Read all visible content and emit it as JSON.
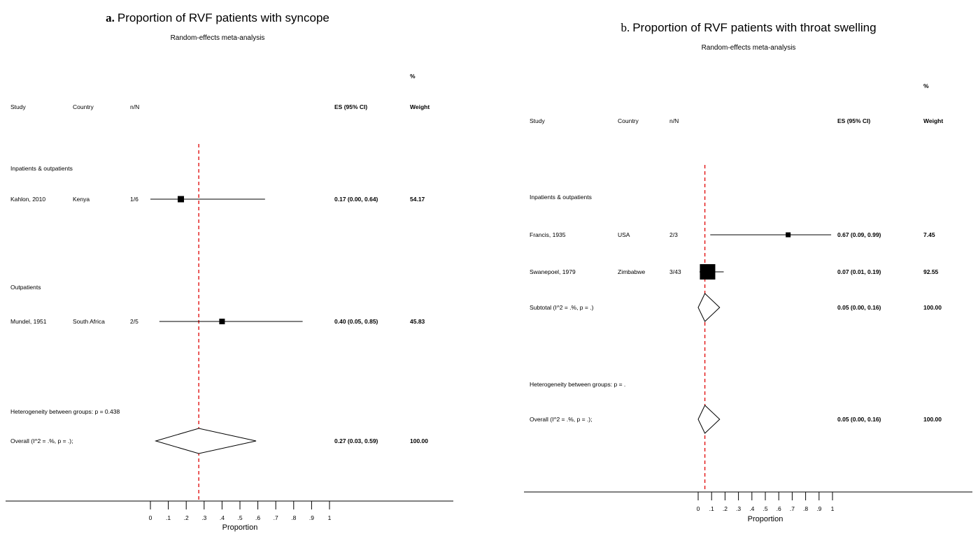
{
  "chart_data": [
    {
      "type": "forest",
      "panel_letter": "a.",
      "title": "Proportion of RVF patients with syncope",
      "subtitle": "Random-effects meta-analysis",
      "xlabel": "Proportion",
      "xlim": [
        0,
        1
      ],
      "xticks": [
        "0",
        ".1",
        ".2",
        ".3",
        ".4",
        ".5",
        ".6",
        ".7",
        ".8",
        ".9",
        "1"
      ],
      "reference_line": 0.27,
      "headers": {
        "study": "Study",
        "country": "Country",
        "nN": "n/N",
        "es": "ES (95% CI)",
        "pct": "%",
        "weight": "Weight"
      },
      "rows": [
        {
          "kind": "group",
          "label": "Inpatients & outpatients"
        },
        {
          "kind": "study",
          "study": "Kahlon, 2010",
          "country": "Kenya",
          "nN": "1/6",
          "es": 0.17,
          "lo": 0.0,
          "hi": 0.64,
          "es_text": "0.17 (0.00, 0.64)",
          "weight": "54.17"
        },
        {
          "kind": "group",
          "label": "Outpatients"
        },
        {
          "kind": "study",
          "study": "Mundel, 1951",
          "country": "South Africa",
          "nN": "2/5",
          "es": 0.4,
          "lo": 0.05,
          "hi": 0.85,
          "es_text": "0.40 (0.05, 0.85)",
          "weight": "45.83"
        },
        {
          "kind": "note",
          "label": "Heterogeneity between groups: p = 0.438"
        },
        {
          "kind": "overall",
          "label": "Overall  (I^2 = .%, p = .);",
          "es": 0.27,
          "lo": 0.03,
          "hi": 0.59,
          "es_text": "0.27 (0.03, 0.59)",
          "weight": "100.00"
        }
      ]
    },
    {
      "type": "forest",
      "panel_letter": "b.",
      "title": "Proportion of RVF patients with throat swelling",
      "subtitle": "Random-effects meta-analysis",
      "xlabel": "Proportion",
      "xlim": [
        0,
        1
      ],
      "xticks": [
        "0",
        ".1",
        ".2",
        ".3",
        ".4",
        ".5",
        ".6",
        ".7",
        ".8",
        ".9",
        "1"
      ],
      "reference_line": 0.05,
      "headers": {
        "study": "Study",
        "country": "Country",
        "nN": "n/N",
        "es": "ES (95% CI)",
        "pct": "%",
        "weight": "Weight"
      },
      "rows": [
        {
          "kind": "group",
          "label": "Inpatients & outpatients"
        },
        {
          "kind": "study",
          "study": "Francis, 1935",
          "country": "USA",
          "nN": "2/3",
          "es": 0.67,
          "lo": 0.09,
          "hi": 0.99,
          "es_text": "0.67 (0.09, 0.99)",
          "weight": "7.45"
        },
        {
          "kind": "study",
          "study": "Swanepoel, 1979",
          "country": "Zimbabwe",
          "nN": "3/43",
          "es": 0.07,
          "lo": 0.01,
          "hi": 0.19,
          "es_text": "0.07 (0.01, 0.19)",
          "weight": "92.55"
        },
        {
          "kind": "subtotal",
          "label": "Subtotal  (I^2 = .%, p = .)",
          "es": 0.05,
          "lo": 0.0,
          "hi": 0.16,
          "es_text": "0.05 (0.00, 0.16)",
          "weight": "100.00"
        },
        {
          "kind": "note",
          "label": "Heterogeneity between groups: p = ."
        },
        {
          "kind": "overall",
          "label": "Overall  (I^2 = .%, p = .);",
          "es": 0.05,
          "lo": 0.0,
          "hi": 0.16,
          "es_text": "0.05 (0.00, 0.16)",
          "weight": "100.00"
        }
      ]
    }
  ]
}
